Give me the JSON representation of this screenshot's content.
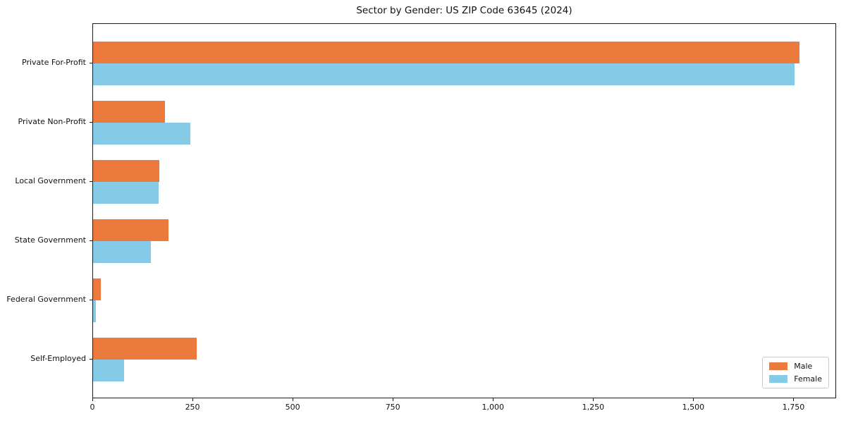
{
  "title": "Sector by Gender: US ZIP Code 63645 (2024)",
  "chart_data": {
    "type": "bar",
    "orientation": "horizontal",
    "title": "Sector by Gender: US ZIP Code 63645 (2024)",
    "categories": [
      "Private For-Profit",
      "Private Non-Profit",
      "Local Government",
      "State Government",
      "Federal Government",
      "Self-Employed"
    ],
    "series": [
      {
        "name": "Male",
        "color": "#eb7a3c",
        "values": [
          1763,
          179,
          165,
          188,
          20,
          259
        ]
      },
      {
        "name": "Female",
        "color": "#85cbe8",
        "values": [
          1751,
          243,
          163,
          145,
          7,
          77
        ]
      }
    ],
    "xlim": [
      0,
      1853
    ],
    "xticks": [
      0,
      250,
      500,
      750,
      1000,
      1250,
      1500,
      1750
    ],
    "xtick_labels": [
      "0",
      "250",
      "500",
      "750",
      "1,000",
      "1,250",
      "1,500",
      "1,750"
    ],
    "xlabel": "",
    "ylabel": "",
    "grid": false,
    "legend_position": "lower right",
    "legend": {
      "male_label": "Male",
      "female_label": "Female"
    }
  }
}
